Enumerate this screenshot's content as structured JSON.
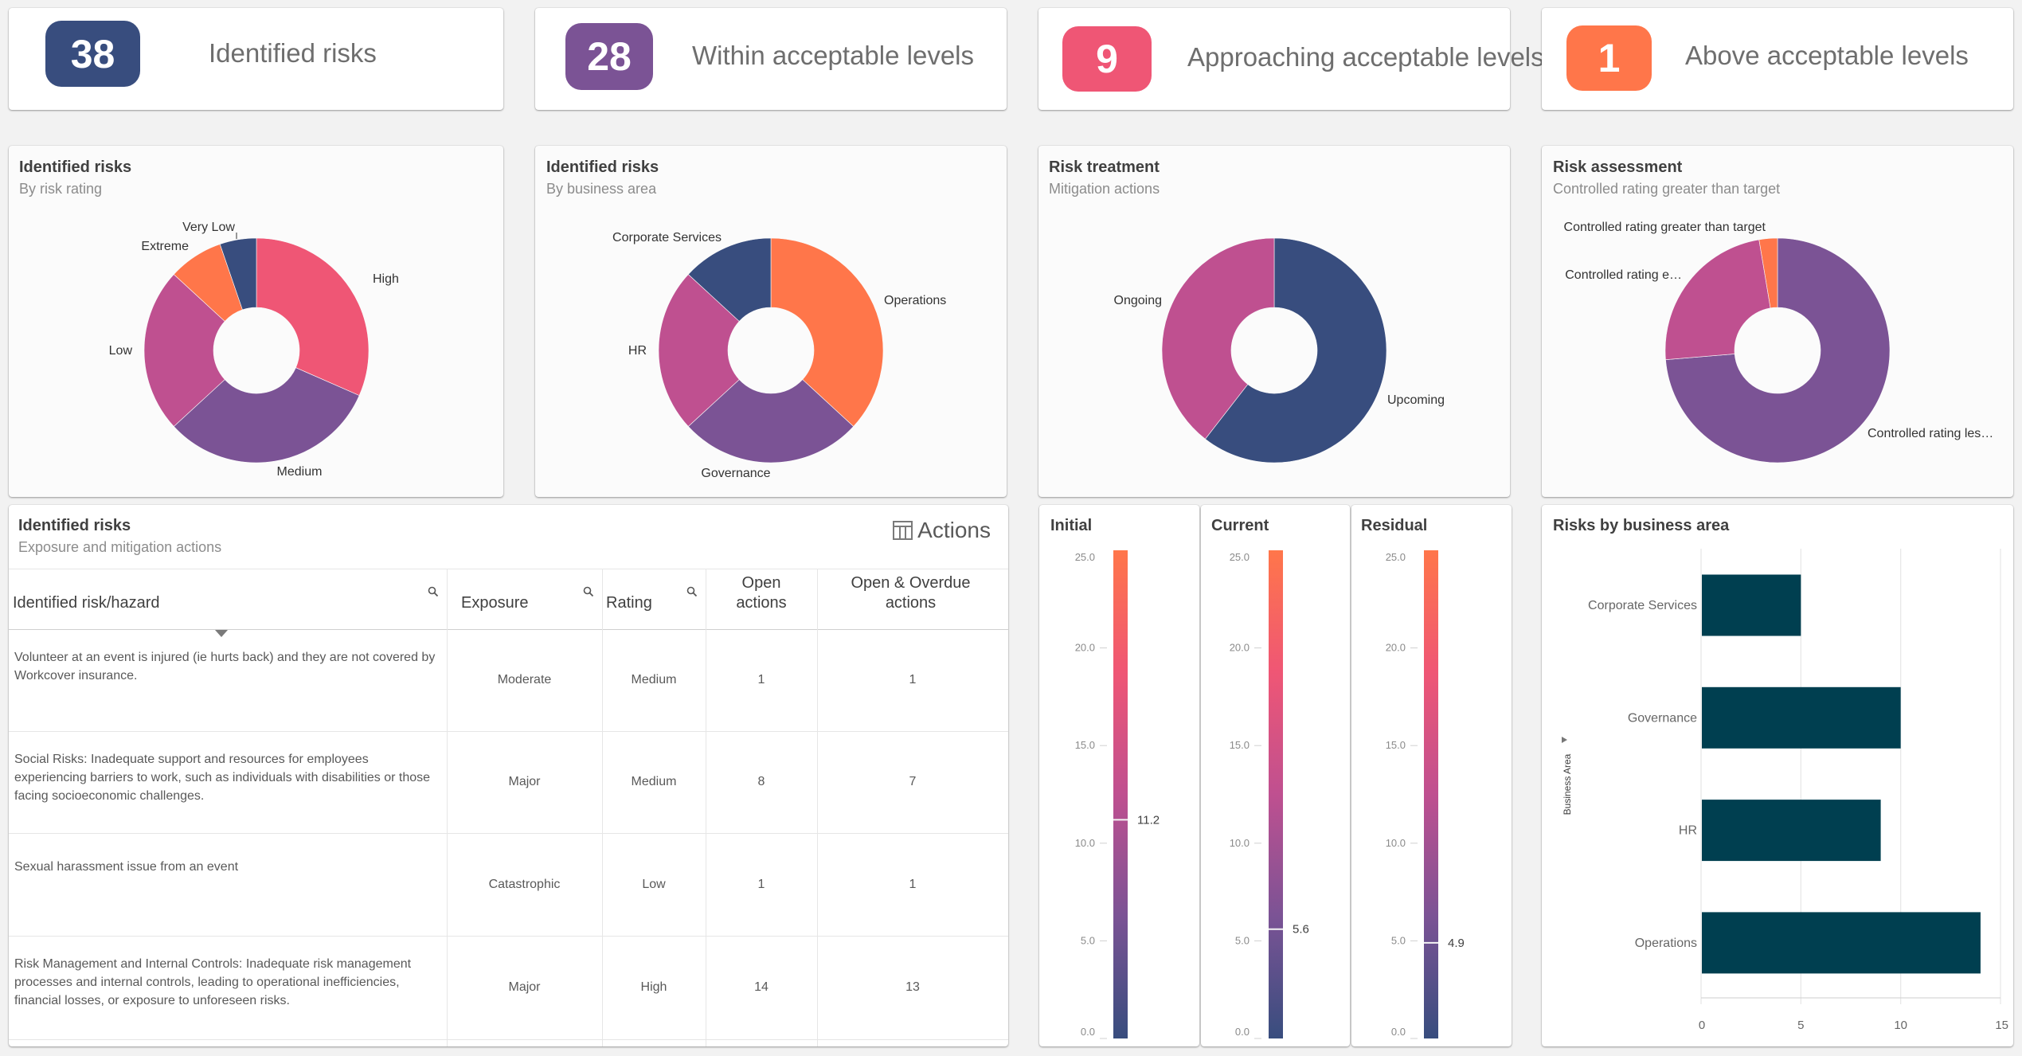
{
  "colors": {
    "dark_blue": "#384d7e",
    "purple": "#7b5395",
    "magenta": "#bf5090",
    "pink": "#ef5675",
    "orange": "#ff764a",
    "bar_teal": "#003f50"
  },
  "kpis": [
    {
      "value": "38",
      "label": "Identified risks",
      "color": "#384d7e"
    },
    {
      "value": "28",
      "label": "Within acceptable levels",
      "color": "#7b5395"
    },
    {
      "value": "9",
      "label": "Approaching acceptable levels",
      "color": "#ef5675"
    },
    {
      "value": "1",
      "label": "Above acceptable levels",
      "color": "#ff764a"
    }
  ],
  "pies": [
    {
      "title": "Identified risks",
      "subtitle": "By risk rating"
    },
    {
      "title": "Identified risks",
      "subtitle": "By business area"
    },
    {
      "title": "Risk treatment",
      "subtitle": "Mitigation actions"
    },
    {
      "title": "Risk assessment",
      "subtitle": "Controlled rating greater than target"
    }
  ],
  "table": {
    "title": "Identified risks",
    "subtitle": "Exposure and mitigation actions",
    "actions_label": "Actions",
    "actions_icon": "table-columns-icon",
    "columns": [
      "Identified risk/hazard",
      "Exposure",
      "Rating",
      "Open actions",
      "Open & Overdue actions"
    ],
    "column_lines": [
      [
        "Identified risk/hazard"
      ],
      [
        "Exposure"
      ],
      [
        "Rating"
      ],
      [
        "Open",
        "actions"
      ],
      [
        "Open & Overdue",
        "actions"
      ]
    ],
    "rows": [
      {
        "risk": "Volunteer at an event is injured (ie hurts back) and they are not covered by Workcover insurance.",
        "exposure": "Moderate",
        "rating": "Medium",
        "open": "1",
        "overdue": "1"
      },
      {
        "risk": "Social Risks: Inadequate support and resources for employees experiencing barriers to work, such as individuals with disabilities or those facing socioeconomic challenges.",
        "exposure": "Major",
        "rating": "Medium",
        "open": "8",
        "overdue": "7"
      },
      {
        "risk": "Sexual harassment issue from an event",
        "exposure": "Catastrophic",
        "rating": "Low",
        "open": "1",
        "overdue": "1"
      },
      {
        "risk": "Risk Management and Internal Controls: Inadequate risk management processes and internal controls, leading to operational inefficiencies, financial losses, or exposure to unforeseen risks.",
        "exposure": "Major",
        "rating": "High",
        "open": "14",
        "overdue": "13"
      }
    ]
  },
  "gauges": [
    {
      "title": "Initial",
      "value": 11.2,
      "value_label": "11.2"
    },
    {
      "title": "Current",
      "value": 5.6,
      "value_label": "5.6"
    },
    {
      "title": "Residual",
      "value": 4.9,
      "value_label": "4.9"
    }
  ],
  "bar_card": {
    "title": "Risks by business area"
  },
  "chart_data": [
    {
      "type": "pie",
      "title": "Identified risks",
      "subtitle": "By risk rating",
      "donut": true,
      "categories": [
        "High",
        "Medium",
        "Low",
        "Extreme",
        "Very Low"
      ],
      "values": [
        12,
        12,
        9,
        3,
        2
      ],
      "colors": [
        "#ef5675",
        "#7b5395",
        "#bf5090",
        "#ff764a",
        "#384d7e"
      ]
    },
    {
      "type": "pie",
      "title": "Identified risks",
      "subtitle": "By business area",
      "donut": true,
      "categories": [
        "Operations",
        "Governance",
        "HR",
        "Corporate Services"
      ],
      "values": [
        14,
        10,
        9,
        5
      ],
      "colors": [
        "#ff764a",
        "#7b5395",
        "#bf5090",
        "#384d7e"
      ]
    },
    {
      "type": "pie",
      "title": "Risk treatment",
      "subtitle": "Mitigation actions",
      "donut": true,
      "categories": [
        "Upcoming",
        "Ongoing"
      ],
      "values": [
        23,
        15
      ],
      "colors": [
        "#384d7e",
        "#bf5090"
      ]
    },
    {
      "type": "pie",
      "title": "Risk assessment",
      "subtitle": "Controlled rating greater than target",
      "donut": true,
      "categories": [
        "Controlled rating les…",
        "Controlled rating e…",
        "Controlled rating greater than target"
      ],
      "values": [
        28,
        9,
        1
      ],
      "colors": [
        "#7b5395",
        "#bf5090",
        "#ff764a"
      ]
    },
    {
      "type": "bar",
      "orientation": "horizontal",
      "title": "Risks by business area",
      "categories": [
        "Corporate Services",
        "Governance",
        "HR",
        "Operations"
      ],
      "values": [
        5,
        10,
        9,
        14
      ],
      "ylabel": "Business Area",
      "xlabel": "",
      "xlim": [
        0,
        15
      ],
      "xticks": [
        "0",
        "5",
        "10",
        "15"
      ],
      "grid": true,
      "color": "#003f50"
    },
    {
      "type": "gauge",
      "orientation": "vertical",
      "range": [
        0,
        25
      ],
      "ticks": [
        "0.0",
        "5.0",
        "10.0",
        "15.0",
        "20.0",
        "25.0"
      ],
      "series": [
        {
          "name": "Initial",
          "value": 11.2
        },
        {
          "name": "Current",
          "value": 5.6
        },
        {
          "name": "Residual",
          "value": 4.9
        }
      ],
      "gradient": [
        "#384d7e",
        "#7b5395",
        "#bf5090",
        "#ef5675",
        "#ff764a"
      ]
    }
  ]
}
